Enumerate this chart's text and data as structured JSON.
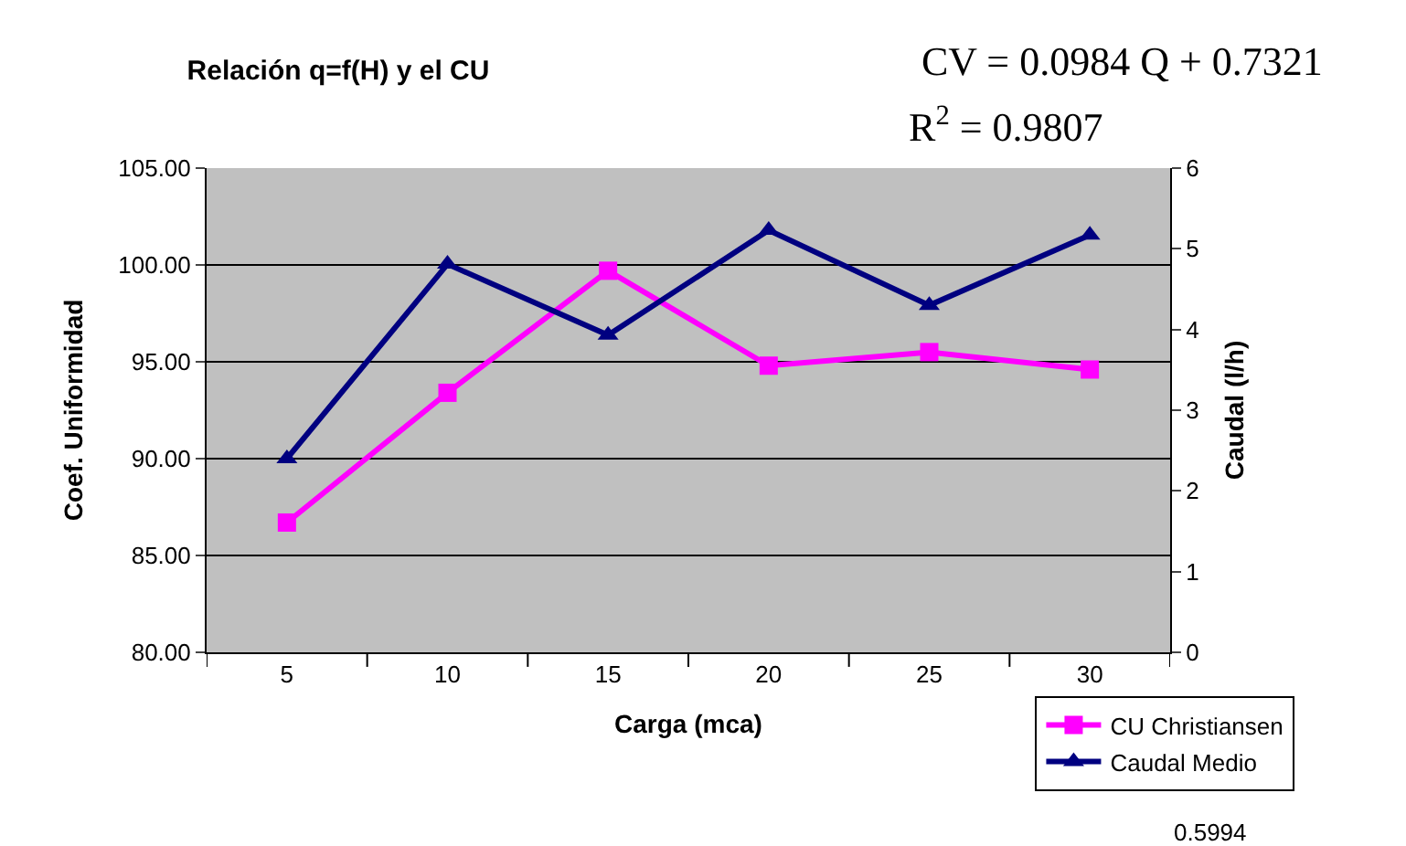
{
  "chart_data": {
    "type": "line",
    "title": "Relación q=f(H) y el CU",
    "xlabel": "Carga (mca)",
    "ylabel": "Coef. Uniformidad",
    "y2label": "Caudal (l/h)",
    "categories": [
      "5",
      "10",
      "15",
      "20",
      "25",
      "30"
    ],
    "series": [
      {
        "name": "CU Christiansen",
        "color": "#ff00ff",
        "marker": "square",
        "values": [
          86.7,
          93.4,
          99.7,
          94.8,
          95.5,
          94.6
        ]
      },
      {
        "name": "Caudal Medio",
        "color": "#000080",
        "marker": "triangle",
        "axis": "y2",
        "values": [
          2.4,
          4.81,
          3.93,
          5.23,
          4.3,
          5.17
        ]
      }
    ],
    "ylim": [
      80,
      105
    ],
    "yticks": [
      {
        "value": 80,
        "label": "80.00"
      },
      {
        "value": 85,
        "label": "85.00"
      },
      {
        "value": 90,
        "label": "90.00"
      },
      {
        "value": 95,
        "label": "95.00"
      },
      {
        "value": 100,
        "label": "100.00"
      },
      {
        "value": 105,
        "label": "105.00"
      }
    ],
    "y2lim": [
      0,
      6
    ],
    "y2ticks": [
      0,
      1,
      2,
      3,
      4,
      5,
      6
    ],
    "grid": "y",
    "legend": "bottom right",
    "line_style": "solid",
    "annotations": [
      "CV = 0.0984 Q + 0.7321",
      "R$^{2}$ = 0.9807",
      "0.5994"
    ]
  }
}
